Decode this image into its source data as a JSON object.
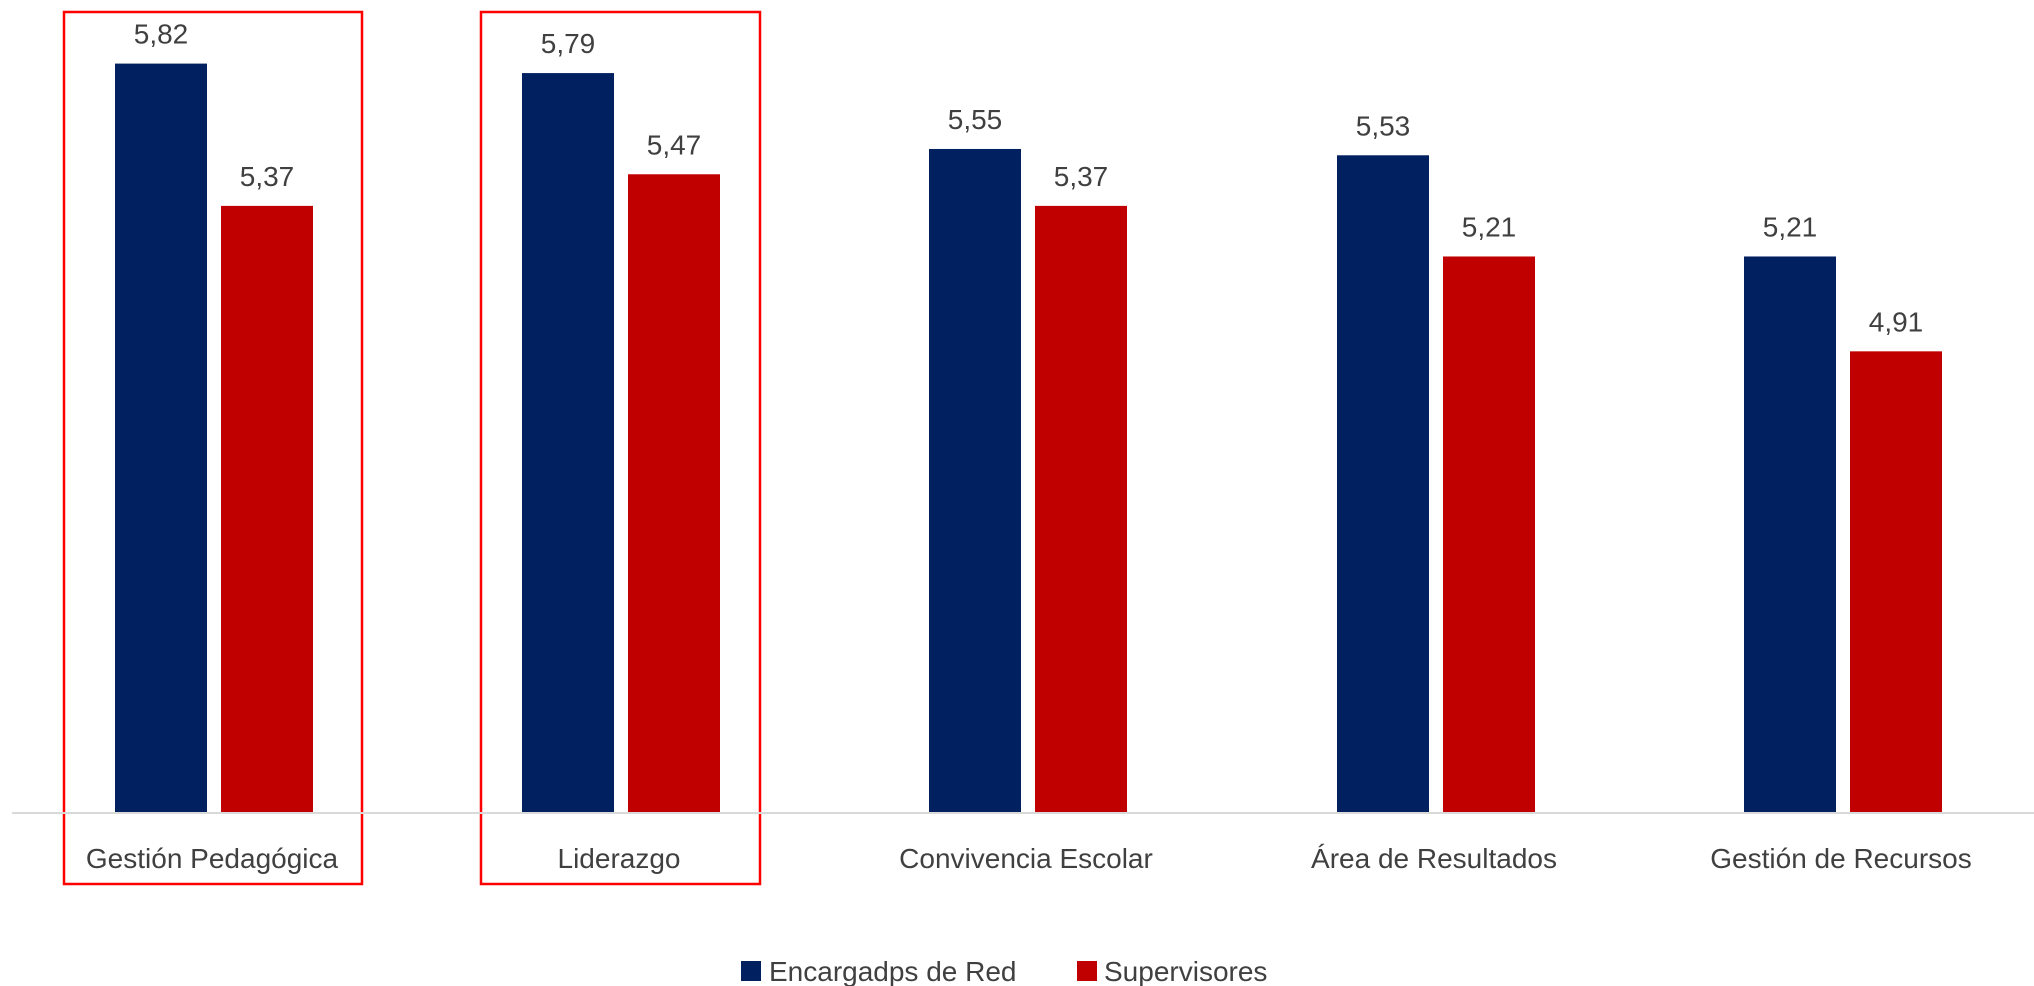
{
  "chart_data": {
    "type": "bar",
    "categories": [
      "Gestión Pedagógica",
      "Liderazgo",
      "Convivencia Escolar",
      "Área de Resultados",
      "Gestión de Recursos"
    ],
    "series": [
      {
        "name": "Encargadps de Red",
        "color": "#002060",
        "values": [
          5.82,
          5.79,
          5.55,
          5.53,
          5.21
        ],
        "labels": [
          "5,82",
          "5,79",
          "5,55",
          "5,53",
          "5,21"
        ]
      },
      {
        "name": "Supervisores",
        "color": "#C00000",
        "values": [
          5.37,
          5.47,
          5.37,
          5.21,
          4.91
        ],
        "labels": [
          "5,37",
          "5,47",
          "5,37",
          "5,21",
          "4,91"
        ]
      }
    ],
    "ylim": [
      3.45,
      5.98
    ],
    "highlighted_categories": [
      "Gestión Pedagógica",
      "Liderazgo"
    ],
    "highlight_color": "#FF0000",
    "axis_color": "#D9D9D9",
    "text_color": "#404040",
    "legend_position": "bottom",
    "gridlines": false,
    "title": "",
    "xlabel": "",
    "ylabel": ""
  }
}
